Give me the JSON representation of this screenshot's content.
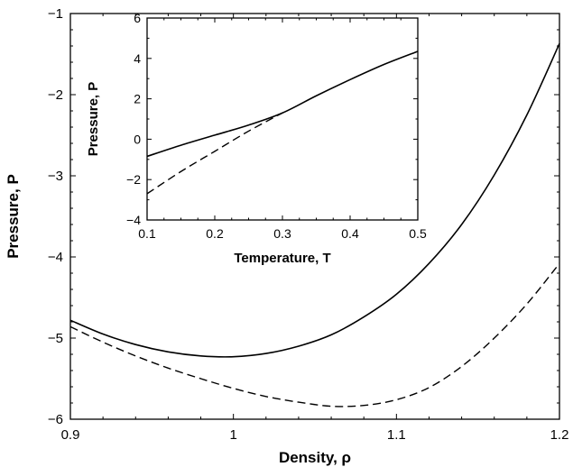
{
  "chart_data": [
    {
      "type": "line",
      "xlabel": "Density, ρ",
      "ylabel": "Pressure, P",
      "xlim": [
        0.9,
        1.2
      ],
      "ylim": [
        -6,
        -1
      ],
      "xticks": [
        "0.9",
        "1",
        "1.1",
        "1.2"
      ],
      "yticks": [
        "−6",
        "−5",
        "−4",
        "−3",
        "−2",
        "−1"
      ],
      "grid": false,
      "series": [
        {
          "style": "solid",
          "x": [
            0.9,
            0.92,
            0.94,
            0.96,
            0.98,
            1.0,
            1.02,
            1.04,
            1.06,
            1.08,
            1.1,
            1.12,
            1.14,
            1.16,
            1.18,
            1.2
          ],
          "y": [
            -4.78,
            -4.95,
            -5.08,
            -5.17,
            -5.22,
            -5.23,
            -5.19,
            -5.1,
            -4.96,
            -4.74,
            -4.46,
            -4.08,
            -3.6,
            -2.99,
            -2.25,
            -1.37
          ]
        },
        {
          "style": "dashed",
          "x": [
            0.9,
            0.92,
            0.94,
            0.96,
            0.98,
            1.0,
            1.02,
            1.04,
            1.06,
            1.08,
            1.1,
            1.12,
            1.14,
            1.16,
            1.18,
            1.2
          ],
          "y": [
            -4.86,
            -5.05,
            -5.22,
            -5.37,
            -5.5,
            -5.62,
            -5.72,
            -5.79,
            -5.84,
            -5.83,
            -5.76,
            -5.61,
            -5.35,
            -5.0,
            -4.58,
            -4.08
          ]
        }
      ]
    },
    {
      "type": "line",
      "xlabel": "Temperature, T",
      "ylabel": "Pressure, P",
      "xlim": [
        0.1,
        0.5
      ],
      "ylim": [
        -4,
        6
      ],
      "xticks": [
        "0.1",
        "0.2",
        "0.3",
        "0.4",
        "0.5"
      ],
      "yticks": [
        "−4",
        "−2",
        "0",
        "2",
        "4",
        "6"
      ],
      "grid": false,
      "series": [
        {
          "style": "solid",
          "x": [
            0.1,
            0.15,
            0.2,
            0.25,
            0.3,
            0.35,
            0.4,
            0.45,
            0.5
          ],
          "y": [
            -0.85,
            -0.3,
            0.2,
            0.7,
            1.3,
            2.15,
            2.95,
            3.7,
            4.35
          ]
        },
        {
          "style": "dashed",
          "x": [
            0.1,
            0.15,
            0.2,
            0.25,
            0.3
          ],
          "y": [
            -2.7,
            -1.6,
            -0.6,
            0.4,
            1.3
          ]
        }
      ]
    }
  ]
}
